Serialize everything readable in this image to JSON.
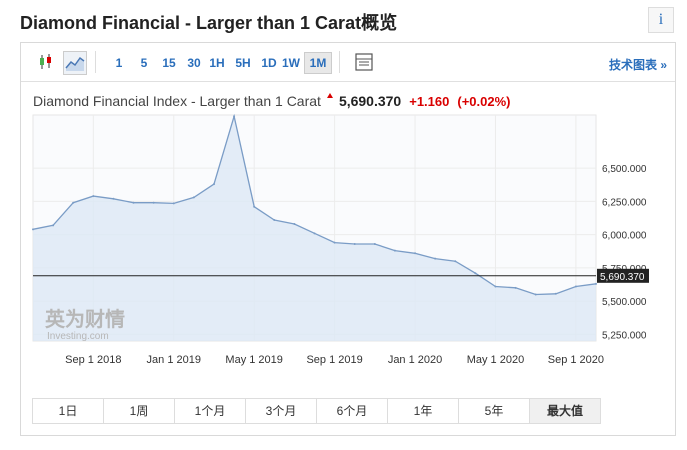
{
  "page": {
    "title": "Diamond Financial - Larger than 1 Carat概览",
    "info_label": "i"
  },
  "toolbar": {
    "timeframes": [
      "1",
      "5",
      "15",
      "30",
      "1H",
      "5H",
      "1D",
      "1W",
      "1M"
    ],
    "active": "1M",
    "advanced_label": "技术图表 »"
  },
  "header": {
    "name": "Diamond Financial Index - Larger than 1 Carat",
    "price": "5,690.370",
    "change": "+1.160",
    "change_pct": "(+0.02%)"
  },
  "watermark": {
    "cn": "英为财情",
    "en": "Investing.com"
  },
  "chart_data": {
    "type": "area",
    "x": [
      "2018-06",
      "2018-07",
      "2018-08",
      "2018-09",
      "2018-10",
      "2018-11",
      "2018-12",
      "2019-01",
      "2019-02",
      "2019-03",
      "2019-04",
      "2019-05",
      "2019-06",
      "2019-07",
      "2019-08",
      "2019-09",
      "2019-10",
      "2019-11",
      "2019-12",
      "2020-01",
      "2020-02",
      "2020-03",
      "2020-04",
      "2020-05",
      "2020-06",
      "2020-07",
      "2020-08",
      "2020-09",
      "2020-10"
    ],
    "values": [
      6040,
      6070,
      6240,
      6290,
      6270,
      6240,
      6240,
      6235,
      6280,
      6380,
      6890,
      6210,
      6110,
      6080,
      6010,
      5940,
      5930,
      5930,
      5880,
      5860,
      5820,
      5800,
      5710,
      5610,
      5600,
      5550,
      5555,
      5610,
      5630
    ],
    "last_price": 5690.37,
    "last_price_label": "5,690.370",
    "y_ticks": [
      "6,500.000",
      "6,250.000",
      "6,000.000",
      "5,750.000",
      "5,500.000",
      "5,250.000"
    ],
    "y_tick_values": [
      6500,
      6250,
      6000,
      5750,
      5500,
      5250
    ],
    "ylim": [
      5200,
      6900
    ],
    "x_ticks": [
      {
        "label": "Sep 1 2018",
        "at": "2018-09"
      },
      {
        "label": "Jan 1 2019",
        "at": "2019-01"
      },
      {
        "label": "May 1 2019",
        "at": "2019-05"
      },
      {
        "label": "Sep 1 2019",
        "at": "2019-09"
      },
      {
        "label": "Jan 1 2020",
        "at": "2020-01"
      },
      {
        "label": "May 1 2020",
        "at": "2020-05"
      },
      {
        "label": "Sep 1 2020",
        "at": "2020-09"
      }
    ],
    "grid": true,
    "line_color": "#7a9cc6",
    "fill_color": "#dde9f5"
  },
  "ranges": {
    "items": [
      "1日",
      "1周",
      "1个月",
      "3个月",
      "6个月",
      "1年",
      "5年",
      "最大值"
    ],
    "active": "最大值"
  }
}
